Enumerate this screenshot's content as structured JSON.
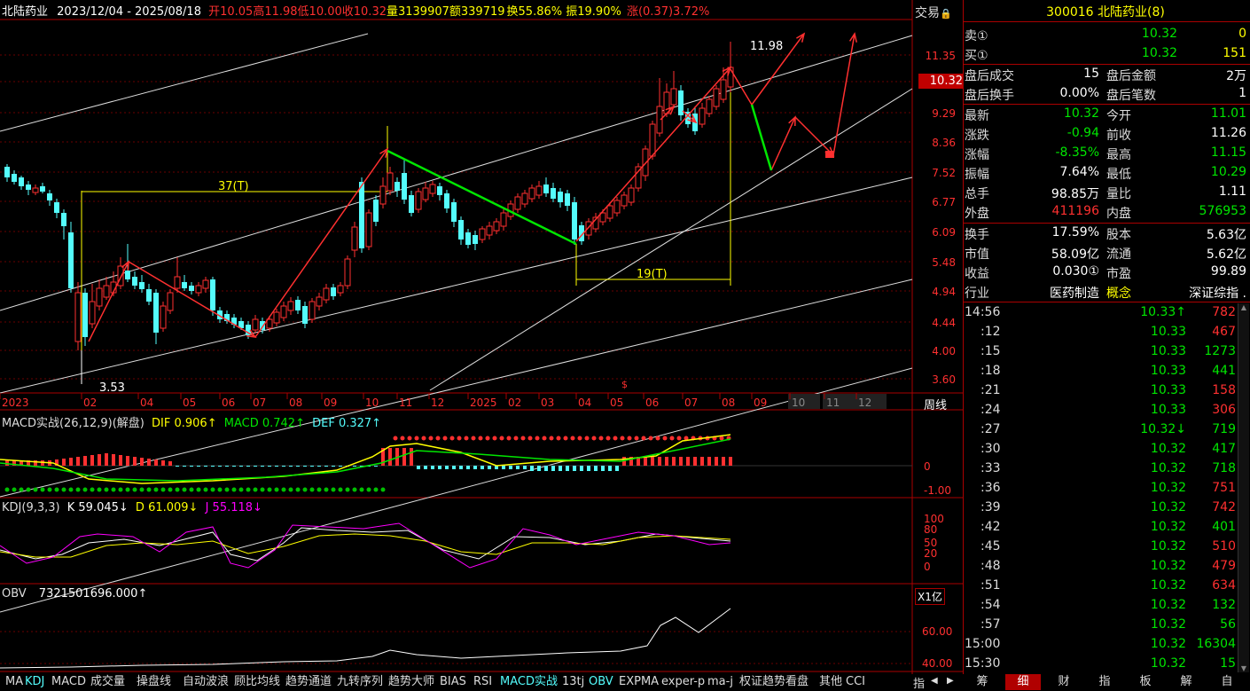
{
  "header": {
    "name": "北陆药业",
    "range": "2023/12/04 - 2025/08/18",
    "open": "开10.05",
    "high": "高11.98",
    "low": "低10.00",
    "close": "收10.32",
    "vol": "量3139907",
    "amount": "额339719",
    "turnover": "换55.86%",
    "amplitude": "振19.90%",
    "change": "涨(0.37)3.72%"
  },
  "chart_labels": {
    "trade_btn": "交易",
    "lock": "🔒",
    "current_price": "10.32",
    "high_mark": "11.98",
    "low_mark": "3.53",
    "span_37": "37(T)",
    "span_19": "19(T)",
    "dollar": "$",
    "week_label": "周线",
    "yi_label": "X1亿"
  },
  "price_axis": [
    "11.35",
    "10.32",
    "9.29",
    "8.36",
    "7.52",
    "6.77",
    "6.09",
    "5.48",
    "4.94",
    "4.44",
    "4.00",
    "3.60"
  ],
  "time_axis": [
    "2023",
    "02",
    "04",
    "05",
    "06",
    "07",
    "08",
    "09",
    "10",
    "11",
    "12",
    "2025",
    "02",
    "03",
    "04",
    "05",
    "06",
    "07",
    "08",
    "09",
    "10",
    "11",
    "12"
  ],
  "macd": {
    "name": "MACD实战(26,12,9)(解盘)",
    "dif": "DIF 0.906↑",
    "macd": "MACD 0.742↑",
    "dea": "DEF 0.327↑",
    "axis": [
      "0",
      "-1.00"
    ]
  },
  "kdj": {
    "name": "KDJ(9,3,3)",
    "k": "K 59.045↓",
    "d": "D 61.009↓",
    "j": "J 55.118↓",
    "axis": [
      "100",
      "80",
      "50",
      "20",
      "0"
    ]
  },
  "obv": {
    "name": "OBV",
    "value": "7321501696.000↑",
    "axis": [
      "60.00",
      "40.00"
    ]
  },
  "bottom_tabs": [
    "MA",
    "KDJ",
    "MACD",
    "成交量",
    "操盘线",
    "自动波浪",
    "顾比均线",
    "趋势通道",
    "九转序列",
    "趋势大师",
    "BIAS",
    "RSI",
    "MACD实战",
    "13tj",
    "OBV",
    "EXPMA",
    "exper-p",
    "ma-j",
    "权证趋势看盘",
    "其他",
    "CCI"
  ],
  "bottom_right_tab": "指",
  "stock_title": "300016 北陆药业(8)",
  "orderbook": {
    "sell": {
      "label": "卖①",
      "price": "10.32",
      "vol": "0"
    },
    "buy": {
      "label": "买①",
      "price": "10.32",
      "vol": "151"
    }
  },
  "after_hours": [
    {
      "l1": "盘后成交",
      "v1": "15",
      "l2": "盘后金额",
      "v2": "2万"
    },
    {
      "l1": "盘后换手",
      "v1": "0.00%",
      "l2": "盘后笔数",
      "v2": "1"
    }
  ],
  "quote": [
    {
      "l1": "最新",
      "v1": "10.32",
      "l2": "今开",
      "v2": "11.01"
    },
    {
      "l1": "涨跌",
      "v1": "-0.94",
      "l2": "前收",
      "v2": "11.26"
    },
    {
      "l1": "涨幅",
      "v1": "-8.35%",
      "l2": "最高",
      "v2": "11.15"
    },
    {
      "l1": "振幅",
      "v1": "7.64%",
      "l2": "最低",
      "v2": "10.29"
    },
    {
      "l1": "总手",
      "v1": "98.85万",
      "l2": "量比",
      "v2": "1.11"
    },
    {
      "l1": "外盘",
      "v1": "411196",
      "l2": "内盘",
      "v2": "576953"
    }
  ],
  "fundamentals": [
    {
      "l1": "换手",
      "v1": "17.59%",
      "l2": "股本",
      "v2": "5.63亿"
    },
    {
      "l1": "市值",
      "v1": "58.09亿",
      "l2": "流通",
      "v2": "5.62亿"
    },
    {
      "l1": "收益",
      "v1": "0.030①",
      "l2": "市盈",
      "v2": "99.89"
    },
    {
      "l1": "行业",
      "v1": "医药制造",
      "l2": "概念",
      "v2": "深证综指 ."
    }
  ],
  "ticks": [
    {
      "t": "14:56",
      "p": "10.33↑",
      "v": "782"
    },
    {
      "t": ":12",
      "p": "10.33",
      "v": "467"
    },
    {
      "t": ":15",
      "p": "10.33",
      "v": "1273"
    },
    {
      "t": ":18",
      "p": "10.33",
      "v": "441"
    },
    {
      "t": ":21",
      "p": "10.33",
      "v": "158"
    },
    {
      "t": ":24",
      "p": "10.33",
      "v": "306"
    },
    {
      "t": ":27",
      "p": "10.32↓",
      "v": "719"
    },
    {
      "t": ":30",
      "p": "10.32",
      "v": "417"
    },
    {
      "t": ":33",
      "p": "10.32",
      "v": "718"
    },
    {
      "t": ":36",
      "p": "10.32",
      "v": "751"
    },
    {
      "t": ":39",
      "p": "10.32",
      "v": "742"
    },
    {
      "t": ":42",
      "p": "10.32",
      "v": "401"
    },
    {
      "t": ":45",
      "p": "10.32",
      "v": "510"
    },
    {
      "t": ":48",
      "p": "10.32",
      "v": "479"
    },
    {
      "t": ":51",
      "p": "10.32",
      "v": "634"
    },
    {
      "t": ":54",
      "p": "10.32",
      "v": "132"
    },
    {
      "t": ":57",
      "p": "10.32",
      "v": "56"
    },
    {
      "t": "15:00",
      "p": "10.32",
      "v": "16304"
    },
    {
      "t": "15:30",
      "p": "10.32",
      "v": "15"
    }
  ],
  "right_tabs": [
    "筹",
    "细",
    "财",
    "指",
    "板",
    "解",
    "自"
  ],
  "colors": {
    "up": "#ff3030",
    "down": "#54fcfc",
    "green": "#00e600",
    "yellow": "#ffff00",
    "magenta": "#ff00ff",
    "axis_red": "#aa0000"
  }
}
